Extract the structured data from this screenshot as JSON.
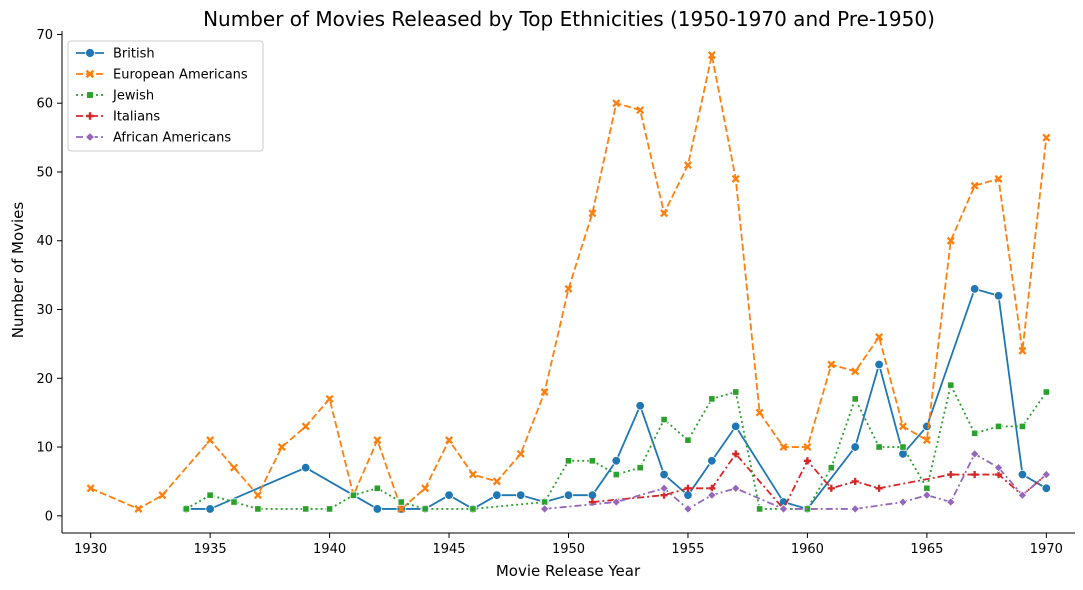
{
  "chart_data": {
    "type": "line",
    "title": "Number of Movies Released by Top Ethnicities (1950-1970 and Pre-1950)",
    "xlabel": "Movie Release Year",
    "ylabel": "Number of Movies",
    "xlim": [
      1928.8,
      1971.2
    ],
    "ylim": [
      -2.5,
      70.5
    ],
    "xticks": [
      1930,
      1935,
      1940,
      1945,
      1950,
      1955,
      1960,
      1965,
      1970
    ],
    "yticks": [
      0,
      10,
      20,
      30,
      40,
      50,
      60,
      70
    ],
    "grid": false,
    "legend_position": "upper-left",
    "series": [
      {
        "name": "British",
        "color": "#1f77b4",
        "marker": "circle",
        "dash": "solid",
        "points": [
          [
            1934,
            1
          ],
          [
            1935,
            1
          ],
          [
            1939,
            7
          ],
          [
            1941,
            3
          ],
          [
            1942,
            1
          ],
          [
            1943,
            1
          ],
          [
            1944,
            1
          ],
          [
            1945,
            3
          ],
          [
            1946,
            1
          ],
          [
            1947,
            3
          ],
          [
            1948,
            3
          ],
          [
            1949,
            2
          ],
          [
            1950,
            3
          ],
          [
            1951,
            3
          ],
          [
            1952,
            8
          ],
          [
            1953,
            16
          ],
          [
            1954,
            6
          ],
          [
            1955,
            3
          ],
          [
            1956,
            8
          ],
          [
            1957,
            13
          ],
          [
            1959,
            2
          ],
          [
            1960,
            1
          ],
          [
            1962,
            10
          ],
          [
            1963,
            22
          ],
          [
            1964,
            9
          ],
          [
            1965,
            13
          ],
          [
            1967,
            33
          ],
          [
            1968,
            32
          ],
          [
            1969,
            6
          ],
          [
            1970,
            4
          ]
        ]
      },
      {
        "name": "European Americans",
        "color": "#ff7f0e",
        "marker": "x",
        "dash": "dashed",
        "points": [
          [
            1930,
            4
          ],
          [
            1932,
            1
          ],
          [
            1933,
            3
          ],
          [
            1935,
            11
          ],
          [
            1936,
            7
          ],
          [
            1937,
            3
          ],
          [
            1938,
            10
          ],
          [
            1939,
            13
          ],
          [
            1940,
            17
          ],
          [
            1941,
            3
          ],
          [
            1942,
            11
          ],
          [
            1943,
            1
          ],
          [
            1944,
            4
          ],
          [
            1945,
            11
          ],
          [
            1946,
            6
          ],
          [
            1947,
            5
          ],
          [
            1948,
            9
          ],
          [
            1949,
            18
          ],
          [
            1950,
            33
          ],
          [
            1951,
            44
          ],
          [
            1952,
            60
          ],
          [
            1953,
            59
          ],
          [
            1954,
            44
          ],
          [
            1955,
            51
          ],
          [
            1956,
            67
          ],
          [
            1957,
            49
          ],
          [
            1958,
            15
          ],
          [
            1959,
            10
          ],
          [
            1960,
            10
          ],
          [
            1961,
            22
          ],
          [
            1962,
            21
          ],
          [
            1963,
            26
          ],
          [
            1964,
            13
          ],
          [
            1965,
            11
          ],
          [
            1966,
            40
          ],
          [
            1967,
            48
          ],
          [
            1968,
            49
          ],
          [
            1969,
            24
          ],
          [
            1970,
            55
          ]
        ]
      },
      {
        "name": "Jewish",
        "color": "#2ca02c",
        "marker": "square",
        "dash": "dotted",
        "points": [
          [
            1934,
            1
          ],
          [
            1935,
            3
          ],
          [
            1936,
            2
          ],
          [
            1937,
            1
          ],
          [
            1939,
            1
          ],
          [
            1940,
            1
          ],
          [
            1941,
            3
          ],
          [
            1942,
            4
          ],
          [
            1943,
            2
          ],
          [
            1944,
            1
          ],
          [
            1946,
            1
          ],
          [
            1949,
            2
          ],
          [
            1950,
            8
          ],
          [
            1951,
            8
          ],
          [
            1952,
            6
          ],
          [
            1953,
            7
          ],
          [
            1954,
            14
          ],
          [
            1955,
            11
          ],
          [
            1956,
            17
          ],
          [
            1957,
            18
          ],
          [
            1958,
            1
          ],
          [
            1960,
            1
          ],
          [
            1961,
            7
          ],
          [
            1962,
            17
          ],
          [
            1963,
            10
          ],
          [
            1964,
            10
          ],
          [
            1965,
            4
          ],
          [
            1966,
            19
          ],
          [
            1967,
            12
          ],
          [
            1968,
            13
          ],
          [
            1969,
            13
          ],
          [
            1970,
            18
          ]
        ]
      },
      {
        "name": "Italians",
        "color": "#d62728",
        "marker": "plus",
        "dash": "dashdot",
        "points": [
          [
            1951,
            2
          ],
          [
            1954,
            3
          ],
          [
            1955,
            4
          ],
          [
            1956,
            4
          ],
          [
            1957,
            9
          ],
          [
            1959,
            1
          ],
          [
            1960,
            8
          ],
          [
            1961,
            4
          ],
          [
            1962,
            5
          ],
          [
            1963,
            4
          ],
          [
            1966,
            6
          ],
          [
            1967,
            6
          ],
          [
            1968,
            6
          ],
          [
            1969,
            3
          ],
          [
            1970,
            6
          ]
        ]
      },
      {
        "name": "African Americans",
        "color": "#9467bd",
        "marker": "diamond",
        "dash": "dashdot",
        "points": [
          [
            1949,
            1
          ],
          [
            1952,
            2
          ],
          [
            1954,
            4
          ],
          [
            1955,
            1
          ],
          [
            1956,
            3
          ],
          [
            1957,
            4
          ],
          [
            1959,
            1
          ],
          [
            1962,
            1
          ],
          [
            1964,
            2
          ],
          [
            1965,
            3
          ],
          [
            1966,
            2
          ],
          [
            1967,
            9
          ],
          [
            1968,
            7
          ],
          [
            1969,
            3
          ],
          [
            1970,
            6
          ]
        ]
      }
    ]
  }
}
